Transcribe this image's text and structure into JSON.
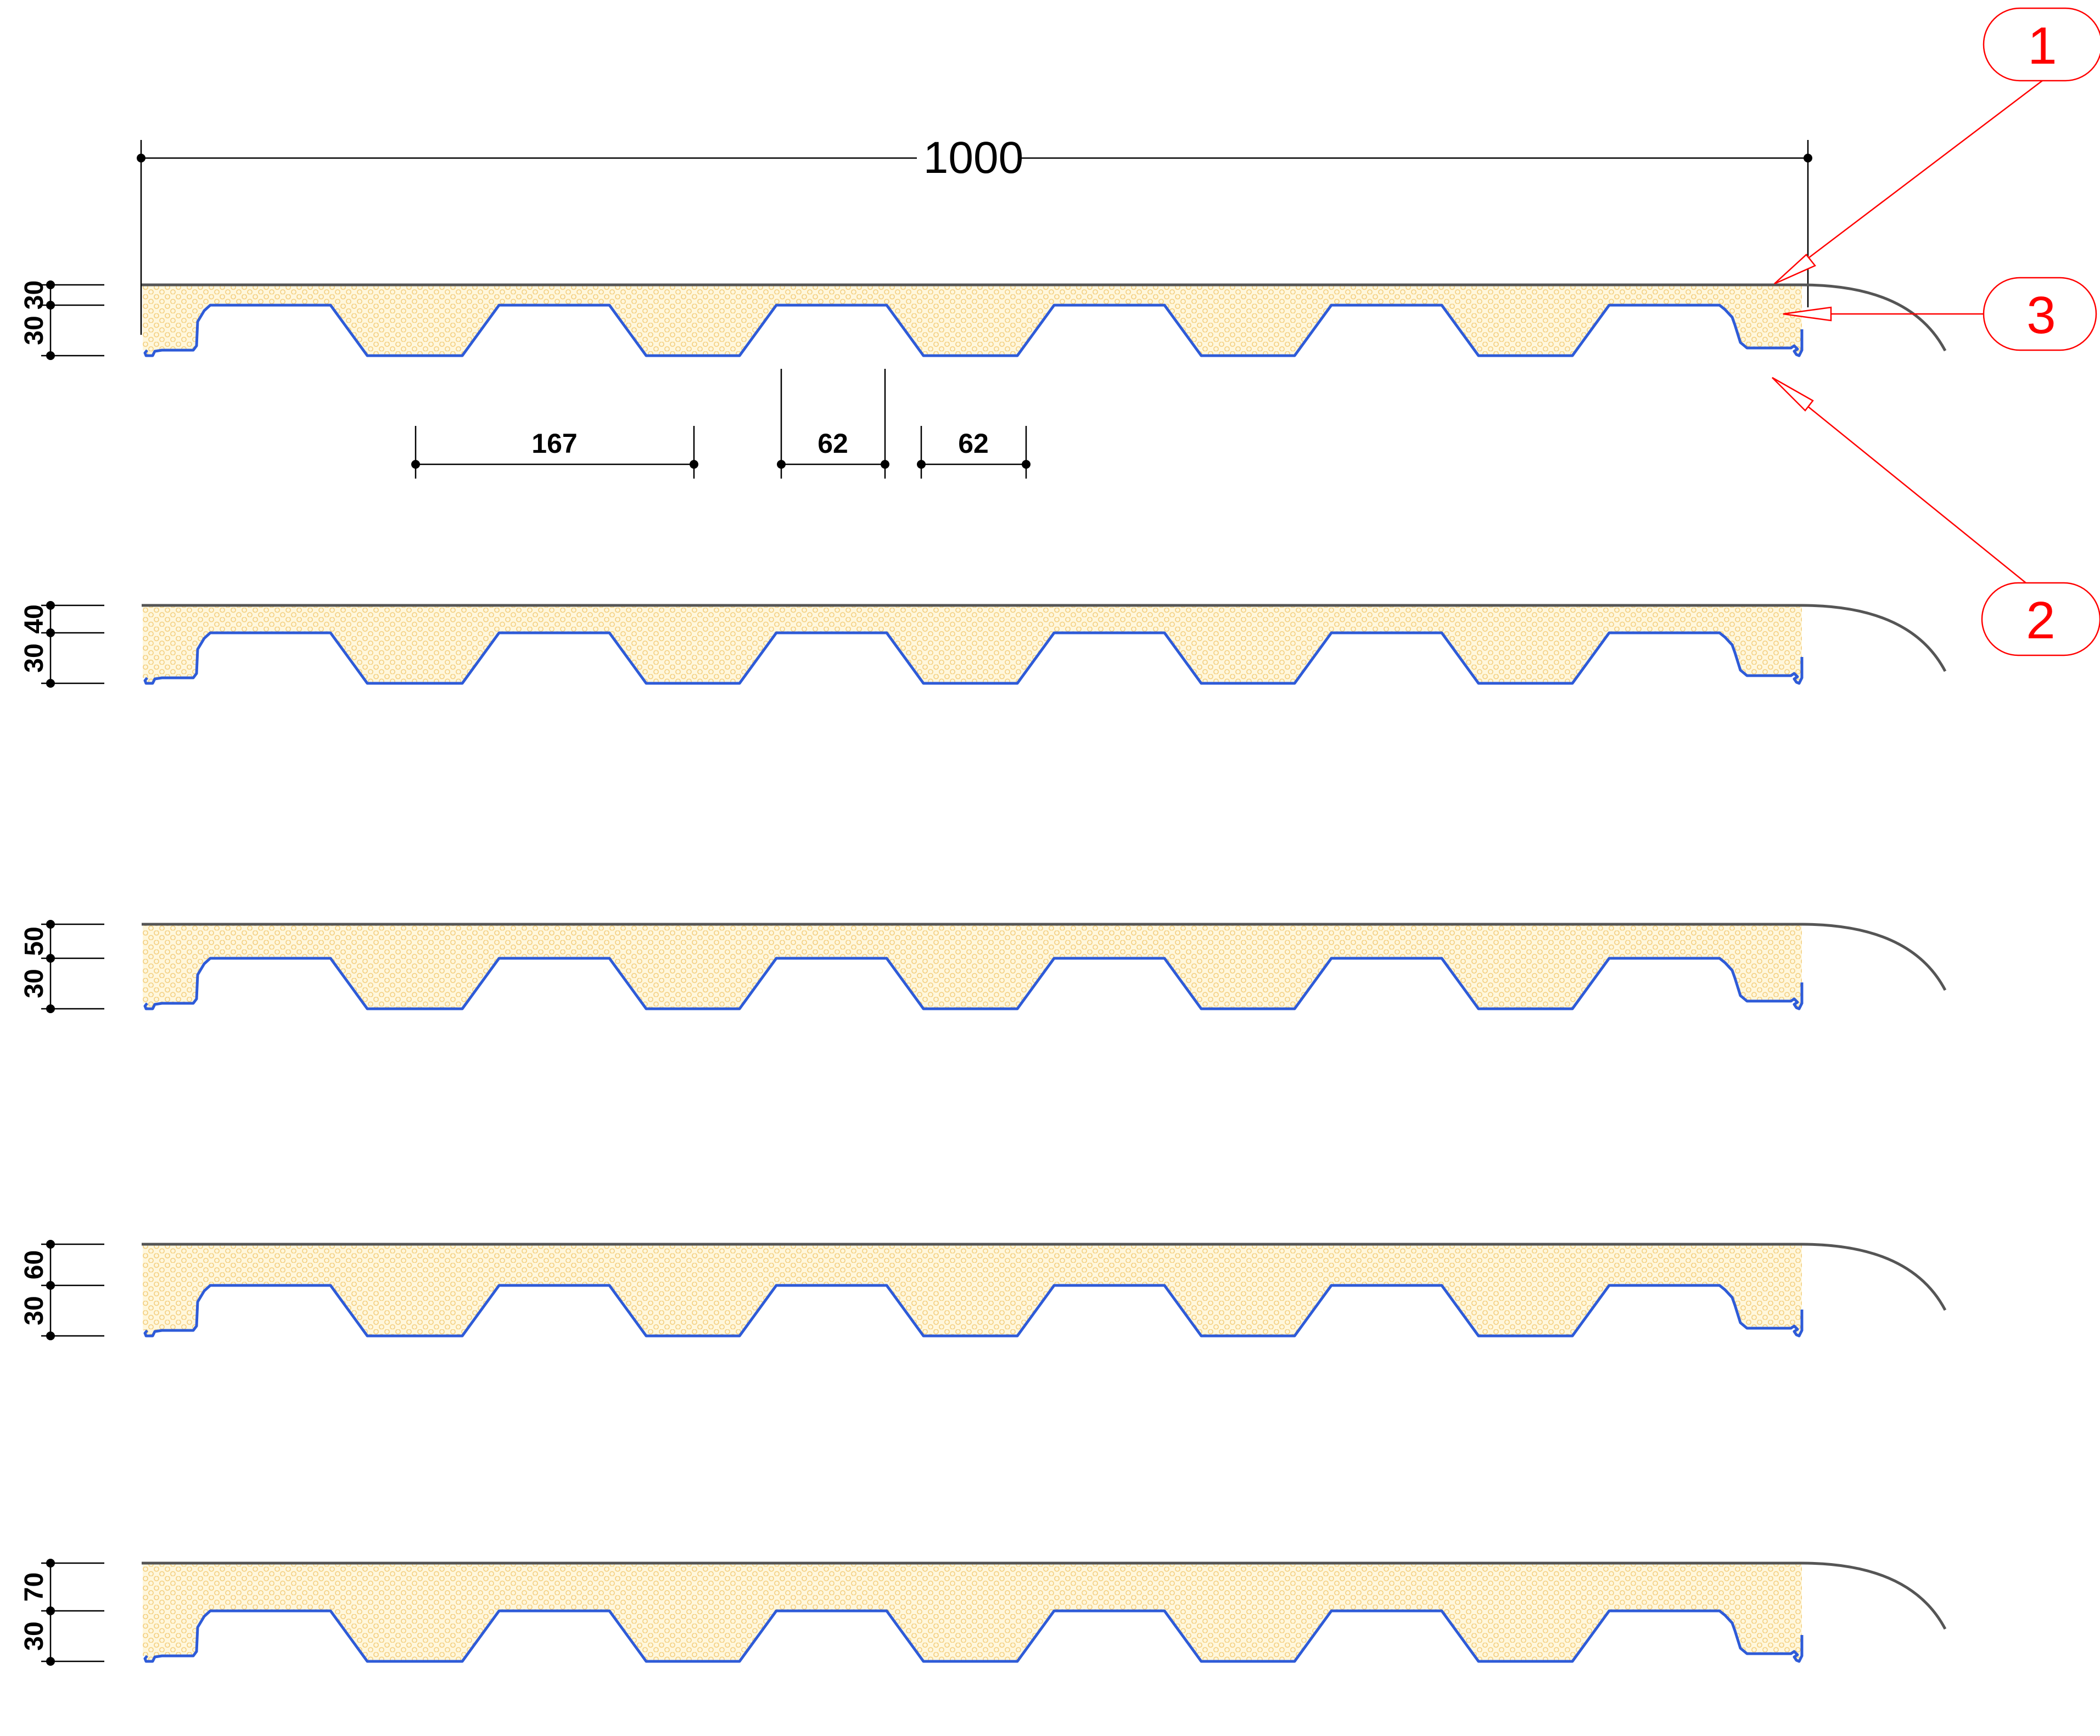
{
  "colors": {
    "core_fill": "#FFF7DC",
    "core_pattern": "#F3CE7E",
    "bottom_sheet": "#2E5BD8",
    "top_sheet": "#555555",
    "dimension": "#000000",
    "callout": "#FF0000"
  },
  "dimensions": {
    "overall_width": "1000",
    "rib_pitch": "167",
    "rib_top": "62",
    "rib_bottom": "62"
  },
  "callouts": [
    {
      "label": "1"
    },
    {
      "label": "3"
    },
    {
      "label": "2"
    }
  ],
  "panels": [
    {
      "core_thickness": "30",
      "rib_height": "30"
    },
    {
      "core_thickness": "40",
      "rib_height": "30"
    },
    {
      "core_thickness": "50",
      "rib_height": "30"
    },
    {
      "core_thickness": "60",
      "rib_height": "30"
    },
    {
      "core_thickness": "70",
      "rib_height": "30"
    }
  ]
}
